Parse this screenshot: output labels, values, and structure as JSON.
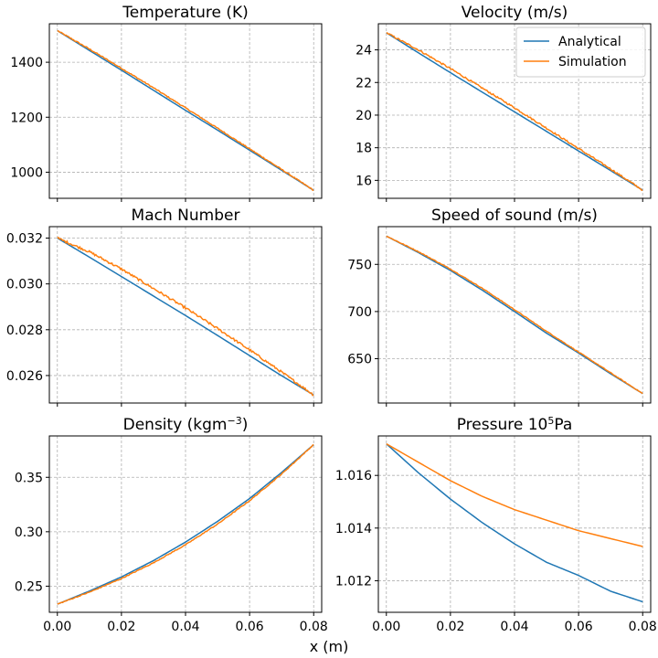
{
  "figure": {
    "xlabel": "x (m)"
  },
  "legend": {
    "entries": [
      {
        "name": "Analytical",
        "color": "#1f77b4"
      },
      {
        "name": "Simulation",
        "color": "#ff7f0e"
      }
    ],
    "placement": "top-right of Velocity panel"
  },
  "chart_data": [
    {
      "type": "line",
      "title": "Temperature (K)",
      "xlim": [
        -0.0025,
        0.0825
      ],
      "ylim": [
        905,
        1540
      ],
      "xticks": [
        0.0,
        0.02,
        0.04,
        0.06,
        0.08
      ],
      "yticks": [
        1000,
        1200,
        1400
      ],
      "yticklabels": [
        "1000",
        "1200",
        "1400"
      ],
      "show_xticklabels": false,
      "grid": true,
      "series": [
        {
          "name": "Analytical",
          "color": "#1f77b4",
          "x": [
            0.0,
            0.01,
            0.02,
            0.03,
            0.04,
            0.05,
            0.06,
            0.07,
            0.08
          ],
          "y": [
            1515,
            1443,
            1371,
            1298,
            1225,
            1153,
            1080,
            1007,
            934
          ],
          "noise": 0
        },
        {
          "name": "Simulation",
          "color": "#ff7f0e",
          "x": [
            0.0,
            0.01,
            0.02,
            0.03,
            0.04,
            0.05,
            0.06,
            0.07,
            0.08
          ],
          "y": [
            1515,
            1448,
            1378,
            1307,
            1234,
            1160,
            1085,
            1010,
            934
          ],
          "noise": 2
        }
      ]
    },
    {
      "type": "line",
      "title": "Velocity (m/s)",
      "xlim": [
        -0.0025,
        0.0825
      ],
      "ylim": [
        14.9,
        25.6
      ],
      "xticks": [
        0.0,
        0.02,
        0.04,
        0.06,
        0.08
      ],
      "yticks": [
        16,
        18,
        20,
        22,
        24
      ],
      "yticklabels": [
        "16",
        "18",
        "20",
        "22",
        "24"
      ],
      "show_xticklabels": false,
      "grid": true,
      "legend": true,
      "series": [
        {
          "name": "Analytical",
          "color": "#1f77b4",
          "x": [
            0.0,
            0.01,
            0.02,
            0.03,
            0.04,
            0.05,
            0.06,
            0.07,
            0.08
          ],
          "y": [
            25.05,
            23.82,
            22.6,
            21.4,
            20.2,
            19.0,
            17.8,
            16.6,
            15.4
          ],
          "noise": 0
        },
        {
          "name": "Simulation",
          "color": "#ff7f0e",
          "x": [
            0.0,
            0.01,
            0.02,
            0.03,
            0.04,
            0.05,
            0.06,
            0.07,
            0.08
          ],
          "y": [
            25.05,
            24.0,
            22.85,
            21.65,
            20.45,
            19.2,
            17.95,
            16.7,
            15.4
          ],
          "noise": 0.05
        }
      ]
    },
    {
      "type": "line",
      "title": "Mach Number",
      "xlim": [
        -0.0025,
        0.0825
      ],
      "ylim": [
        0.0248,
        0.0325
      ],
      "xticks": [
        0.0,
        0.02,
        0.04,
        0.06,
        0.08
      ],
      "yticks": [
        0.026,
        0.028,
        0.03,
        0.032
      ],
      "yticklabels": [
        "0.026",
        "0.028",
        "0.030",
        "0.032"
      ],
      "show_xticklabels": false,
      "grid": true,
      "series": [
        {
          "name": "Analytical",
          "color": "#1f77b4",
          "x": [
            0.0,
            0.01,
            0.02,
            0.03,
            0.04,
            0.05,
            0.06,
            0.07,
            0.08
          ],
          "y": [
            0.032,
            0.03117,
            0.03032,
            0.02947,
            0.02862,
            0.02775,
            0.02687,
            0.02599,
            0.02515
          ],
          "noise": 0
        },
        {
          "name": "Simulation",
          "color": "#ff7f0e",
          "x": [
            0.0,
            0.01,
            0.02,
            0.03,
            0.04,
            0.05,
            0.06,
            0.07,
            0.08
          ],
          "y": [
            0.032,
            0.0314,
            0.03065,
            0.0298,
            0.02895,
            0.02805,
            0.02712,
            0.02615,
            0.02515
          ],
          "noise": 5e-05
        }
      ]
    },
    {
      "type": "line",
      "title": "Speed of sound (m/s)",
      "xlim": [
        -0.0025,
        0.0825
      ],
      "ylim": [
        603,
        790
      ],
      "xticks": [
        0.0,
        0.02,
        0.04,
        0.06,
        0.08
      ],
      "yticks": [
        650,
        700,
        750
      ],
      "yticklabels": [
        "650",
        "700",
        "750"
      ],
      "show_xticklabels": false,
      "grid": true,
      "series": [
        {
          "name": "Analytical",
          "color": "#1f77b4",
          "x": [
            0.0,
            0.01,
            0.02,
            0.03,
            0.04,
            0.05,
            0.06,
            0.07,
            0.08
          ],
          "y": [
            780,
            762.5,
            743.5,
            722.5,
            700,
            677,
            656,
            634,
            613
          ],
          "noise": 0
        },
        {
          "name": "Simulation",
          "color": "#ff7f0e",
          "x": [
            0.0,
            0.01,
            0.02,
            0.03,
            0.04,
            0.05,
            0.06,
            0.07,
            0.08
          ],
          "y": [
            780,
            763.5,
            745,
            724.5,
            702,
            679,
            657,
            635,
            613
          ],
          "noise": 0.4
        }
      ]
    },
    {
      "type": "line",
      "title": "Density (kgm",
      "title_sup": "−3",
      "title_tail": ")",
      "xlim": [
        -0.0025,
        0.0825
      ],
      "ylim": [
        0.226,
        0.388
      ],
      "xticks": [
        0.0,
        0.02,
        0.04,
        0.06,
        0.08
      ],
      "xticklabels": [
        "0.00",
        "0.02",
        "0.04",
        "0.06",
        "0.08"
      ],
      "yticks": [
        0.25,
        0.3,
        0.35
      ],
      "yticklabels": [
        "0.25",
        "0.30",
        "0.35"
      ],
      "show_xticklabels": true,
      "grid": true,
      "series": [
        {
          "name": "Analytical",
          "color": "#1f77b4",
          "x": [
            0.0,
            0.01,
            0.02,
            0.03,
            0.04,
            0.05,
            0.06,
            0.07,
            0.08
          ],
          "y": [
            0.2335,
            0.2455,
            0.2585,
            0.2735,
            0.2905,
            0.3095,
            0.3305,
            0.3545,
            0.38
          ],
          "noise": 0
        },
        {
          "name": "Simulation",
          "color": "#ff7f0e",
          "x": [
            0.0,
            0.01,
            0.02,
            0.03,
            0.04,
            0.05,
            0.06,
            0.07,
            0.08
          ],
          "y": [
            0.2335,
            0.2445,
            0.257,
            0.2715,
            0.288,
            0.307,
            0.3285,
            0.353,
            0.38
          ],
          "noise": 0.0004
        }
      ]
    },
    {
      "type": "line",
      "title": "Pressure 10",
      "title_sup": "5",
      "title_tail": "Pa",
      "xlim": [
        -0.0025,
        0.0825
      ],
      "ylim": [
        1.0108,
        1.0175
      ],
      "xticks": [
        0.0,
        0.02,
        0.04,
        0.06,
        0.08
      ],
      "xticklabels": [
        "0.00",
        "0.02",
        "0.04",
        "0.06",
        "0.08"
      ],
      "yticks": [
        1.012,
        1.014,
        1.016
      ],
      "yticklabels": [
        "1.012",
        "1.014",
        "1.016"
      ],
      "show_xticklabels": true,
      "grid": true,
      "series": [
        {
          "name": "Analytical",
          "color": "#1f77b4",
          "x": [
            0.0,
            0.01,
            0.02,
            0.03,
            0.04,
            0.05,
            0.06,
            0.07,
            0.08
          ],
          "y": [
            1.0172,
            1.0161,
            1.0151,
            1.0142,
            1.0134,
            1.0127,
            1.0122,
            1.0116,
            1.0112
          ],
          "noise": 0
        },
        {
          "name": "Simulation",
          "color": "#ff7f0e",
          "x": [
            0.0,
            0.01,
            0.02,
            0.03,
            0.04,
            0.05,
            0.06,
            0.07,
            0.08
          ],
          "y": [
            1.0172,
            1.0165,
            1.0158,
            1.0152,
            1.0147,
            1.0143,
            1.0139,
            1.0136,
            1.0133
          ],
          "noise": 0
        }
      ]
    }
  ]
}
